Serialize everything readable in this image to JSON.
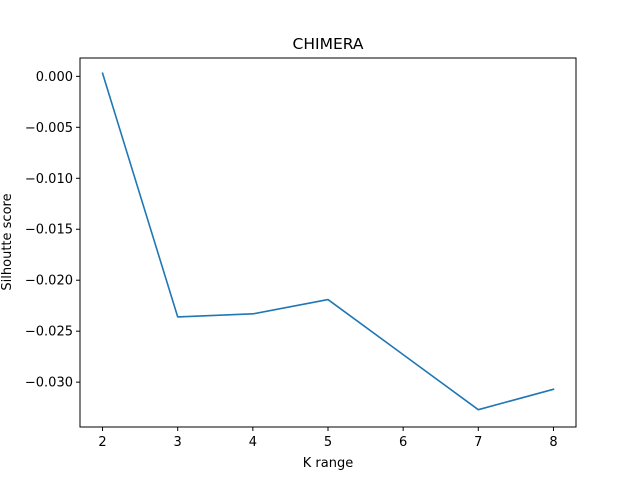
{
  "chart_data": {
    "type": "line",
    "title": "CHIMERA",
    "xlabel": "K range",
    "ylabel": "Silhoutte score",
    "x": [
      2,
      3,
      4,
      5,
      6,
      7,
      8
    ],
    "series": [
      {
        "values": [
          0.0003,
          -0.0236,
          -0.0233,
          -0.0219,
          -0.0273,
          -0.0327,
          -0.0307
        ],
        "color": "#1f77b4"
      }
    ],
    "xlim": [
      1.7,
      8.3
    ],
    "ylim": [
      -0.0344,
      0.0018
    ],
    "xticks": [
      2,
      3,
      4,
      5,
      6,
      7,
      8
    ],
    "xtick_labels": [
      "2",
      "3",
      "4",
      "5",
      "6",
      "7",
      "8"
    ],
    "yticks": [
      0.0,
      -0.005,
      -0.01,
      -0.015,
      -0.02,
      -0.025,
      -0.03
    ],
    "ytick_labels": [
      "0.000",
      "−0.005",
      "−0.010",
      "−0.015",
      "−0.020",
      "−0.025",
      "−0.030"
    ],
    "grid": false,
    "legend": false
  }
}
